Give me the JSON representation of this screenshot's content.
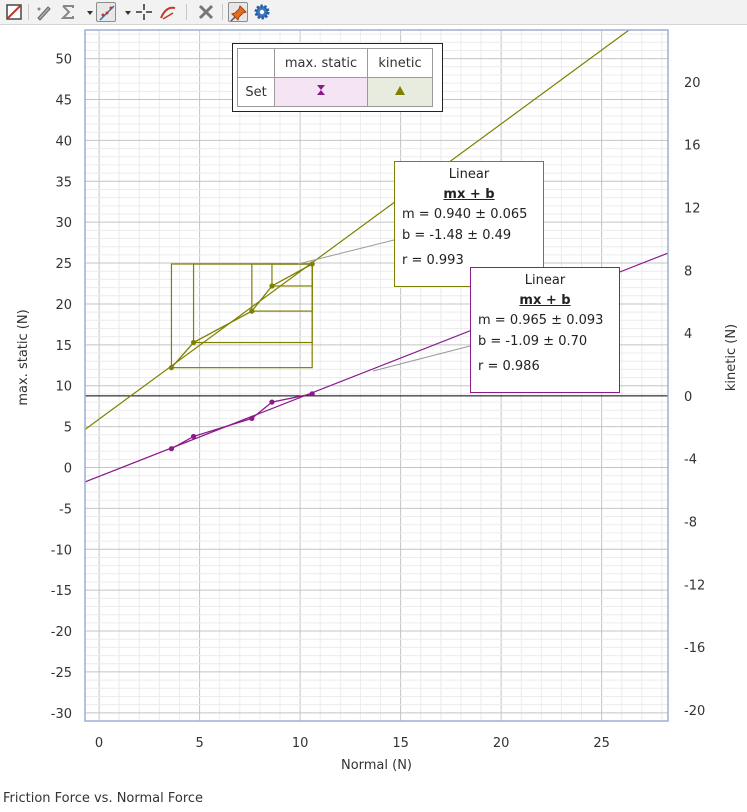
{
  "toolbar": {
    "icons": [
      "data-table-icon",
      "draw-prediction-icon",
      "statistics-icon",
      "dropdown-arrow-icon",
      "curve-fit-icon",
      "dropdown-arrow-icon",
      "examine-crosshair-icon",
      "tangent-icon",
      "delete-icon",
      "pin-annotation-icon",
      "settings-gear-icon"
    ]
  },
  "legend": {
    "header_static": "max. static",
    "header_kinetic": "kinetic",
    "row_label": "Set",
    "static_color": "#8b1a8b",
    "kinetic_color": "#808000"
  },
  "fits": {
    "kinetic": {
      "title": "Linear",
      "equation": "mx + b",
      "m_line": "m = 0.940 ± 0.065",
      "b_line": "b  = -1.48  ± 0.49",
      "r_line": "r = 0.993",
      "color": "#808000"
    },
    "static": {
      "title": "Linear",
      "equation": "mx + b",
      "m_line": "m = 0.965 ± 0.093",
      "b_line": "b  = -1.09  ± 0.70",
      "r_line": "r = 0.986",
      "color": "#8b1a8b"
    }
  },
  "caption": "Friction Force vs. Normal Force",
  "chart_data": {
    "type": "scatter",
    "xlabel": "Normal (N)",
    "ylabel": "max. static (N)",
    "y2label": "kinetic (N)",
    "xlim": [
      -0.7,
      28.3
    ],
    "ylim": [
      -31,
      53.5
    ],
    "y2lim": [
      -20.7,
      23.3
    ],
    "x_ticks": [
      0,
      5,
      10,
      15,
      20,
      25
    ],
    "y_ticks": [
      -30,
      -25,
      -20,
      -15,
      -10,
      -5,
      0,
      5,
      10,
      15,
      20,
      25,
      30,
      35,
      40,
      45,
      50
    ],
    "y2_ticks": [
      -20,
      -16,
      -12,
      -8,
      -4,
      0,
      4,
      8,
      12,
      16,
      20
    ],
    "grid": true,
    "legend_position": "top-center",
    "series": [
      {
        "name": "max. static",
        "axis": "left",
        "color": "#8b1a8b",
        "points": [
          [
            3.6,
            2.3
          ],
          [
            4.7,
            3.8
          ],
          [
            7.6,
            6.0
          ],
          [
            8.6,
            8.0
          ],
          [
            10.6,
            9.0
          ]
        ],
        "fit": {
          "m": 0.965,
          "b": -1.09
        }
      },
      {
        "name": "kinetic",
        "axis": "right",
        "color": "#808000",
        "points": [
          [
            3.6,
            1.8
          ],
          [
            4.7,
            3.4
          ],
          [
            7.6,
            5.4
          ],
          [
            8.6,
            7.0
          ],
          [
            10.6,
            8.4
          ]
        ],
        "fit": {
          "m": 0.94,
          "b": -1.48
        }
      }
    ]
  }
}
